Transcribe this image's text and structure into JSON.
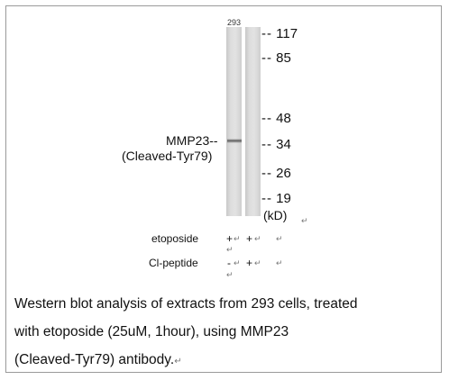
{
  "figure": {
    "lane_label": "293",
    "markers": [
      {
        "label": "117"
      },
      {
        "label": "85"
      },
      {
        "label": "48"
      },
      {
        "label": "34"
      },
      {
        "label": "26"
      },
      {
        "label": "19"
      }
    ],
    "unit": "(kD)",
    "protein_label": "MMP23--",
    "protein_sublabel": "(Cleaved-Tyr79)"
  },
  "conditions": [
    {
      "name": "etoposide",
      "lane1": "+",
      "lane2": "+"
    },
    {
      "name": "Cl-peptide",
      "lane1": "-",
      "lane2": "+"
    }
  ],
  "caption": {
    "line1": "Western blot analysis of extracts from 293 cells, treated",
    "line2": "with etoposide (25uM, 1hour), using MMP23",
    "line3": "(Cleaved-Tyr79) antibody."
  },
  "return_mark": "↵",
  "dash": "--"
}
